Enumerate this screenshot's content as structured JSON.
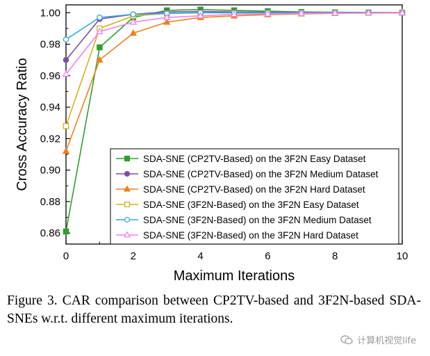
{
  "chart_data": {
    "type": "line",
    "xlabel": "Maximum Iterations",
    "ylabel": "Cross Accuracy Ratio",
    "xlim": [
      0,
      10
    ],
    "ylim": [
      0.853,
      1.005
    ],
    "xticks": [
      0,
      2,
      4,
      6,
      8,
      10
    ],
    "yticks": [
      0.86,
      0.88,
      0.9,
      0.92,
      0.94,
      0.96,
      0.98,
      1.0
    ],
    "xtick_labels": [
      "0",
      "2",
      "4",
      "6",
      "8",
      "10"
    ],
    "ytick_labels": [
      "0.86",
      "0.88",
      "0.90",
      "0.92",
      "0.94",
      "0.96",
      "0.98",
      "1.00"
    ],
    "grid": false,
    "legend_position": "bottom-right",
    "x": [
      0,
      1,
      2,
      3,
      4,
      5,
      6,
      7,
      8,
      9,
      10
    ],
    "series": [
      {
        "name": "SDA-SNE (CP2TV-Based) on the 3F2N Easy Dataset",
        "color": "#2ca02c",
        "marker": "square",
        "filled": true,
        "values": [
          0.861,
          0.978,
          0.997,
          1.0015,
          1.002,
          1.0015,
          1.001,
          1.0005,
          1.0003,
          1.0002,
          1.0001
        ]
      },
      {
        "name": "SDA-SNE (CP2TV-Based) on the 3F2N Medium Dataset",
        "color": "#7b4fa2",
        "marker": "circle",
        "filled": true,
        "values": [
          0.97,
          0.996,
          0.999,
          1.0005,
          1.0008,
          1.0005,
          1.0003,
          1.0002,
          1.0001,
          1.0001,
          1.0
        ]
      },
      {
        "name": "SDA-SNE (CP2TV-Based) on the 3F2N Hard Dataset",
        "color": "#f07f1d",
        "marker": "triangle",
        "filled": true,
        "values": [
          0.912,
          0.97,
          0.987,
          0.994,
          0.997,
          0.998,
          0.9988,
          0.9993,
          0.9996,
          0.9998,
          0.9999
        ]
      },
      {
        "name": "SDA-SNE (3F2N-Based) on the 3F2N Easy Dataset",
        "color": "#d4b21a",
        "marker": "square",
        "filled": false,
        "values": [
          0.928,
          0.99,
          0.998,
          0.9995,
          1.0,
          1.0,
          1.0,
          1.0,
          1.0,
          1.0,
          1.0
        ]
      },
      {
        "name": "SDA-SNE (3F2N-Based) on the 3F2N Medium Dataset",
        "color": "#35a7e0",
        "marker": "circle",
        "filled": false,
        "values": [
          0.983,
          0.997,
          0.999,
          0.9995,
          1.0,
          1.0,
          1.0,
          1.0,
          1.0,
          1.0,
          1.0
        ]
      },
      {
        "name": "SDA-SNE (3F2N-Based) on the 3F2N Hard Dataset",
        "color": "#ee82ee",
        "marker": "triangle",
        "filled": false,
        "values": [
          0.961,
          0.988,
          0.994,
          0.997,
          0.998,
          0.999,
          0.9993,
          0.9996,
          0.9998,
          0.9999,
          1.0
        ]
      }
    ]
  },
  "caption": {
    "text": "Figure 3. CAR comparison between CP2TV-based and 3F2N-based SDA-SNEs w.r.t. different maximum iterations."
  },
  "watermark": {
    "text": "计算机视觉life"
  }
}
